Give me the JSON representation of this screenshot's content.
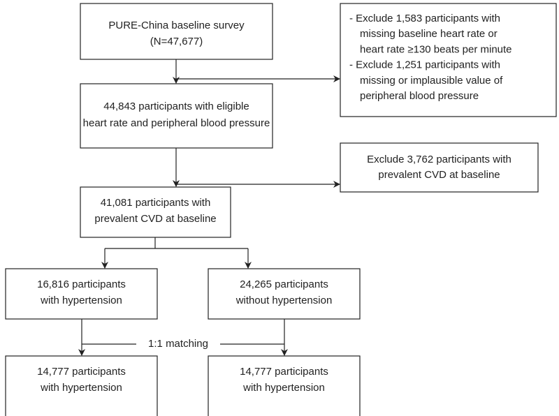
{
  "nodes": [
    {
      "lines": [
        "PURE-China baseline survey",
        "(N=47,677)"
      ]
    },
    {
      "lines": [
        "- Exclude 1,583 participants with",
        "missing baseline heart rate or",
        "heart rate ≥130 beats per minute",
        "- Exclude 1,251 participants with",
        "missing or implausible value of",
        "peripheral blood pressure"
      ]
    },
    {
      "lines": [
        "44,843 participants with eligible",
        "heart rate and peripheral blood pressure"
      ]
    },
    {
      "lines": [
        "Exclude 3,762 participants with",
        "prevalent CVD at baseline"
      ]
    },
    {
      "lines": [
        "41,081 participants with",
        "prevalent CVD at baseline"
      ]
    },
    {
      "lines": [
        "16,816 participants",
        "with hypertension"
      ]
    },
    {
      "lines": [
        "24,265 participants",
        "without hypertension"
      ]
    },
    {
      "lines": [
        "14,777 participants",
        "with hypertension"
      ]
    },
    {
      "lines": [
        "14,777 participants",
        "with hypertension"
      ]
    }
  ],
  "edge_labels": [
    "1:1 matching"
  ]
}
